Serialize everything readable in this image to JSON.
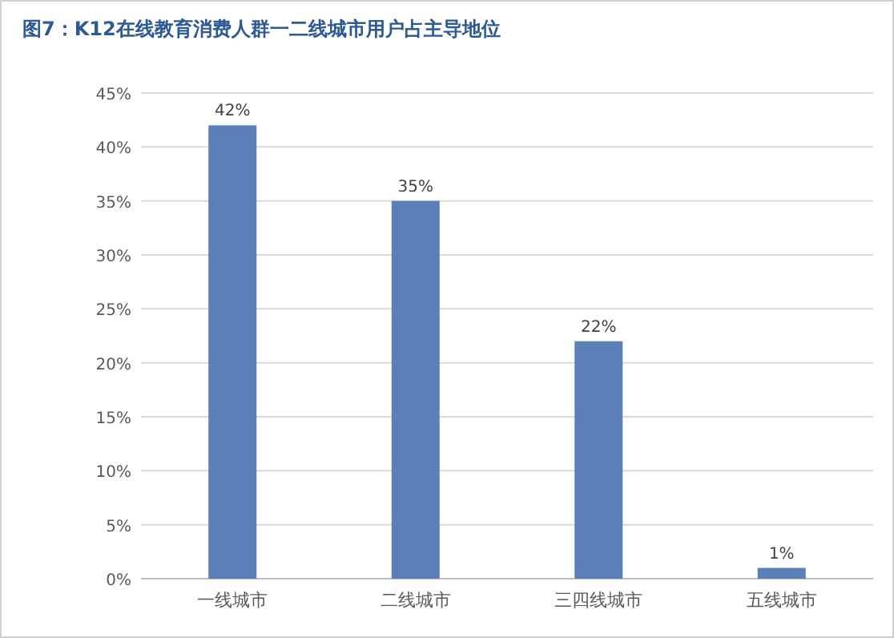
{
  "chart_data": {
    "type": "bar",
    "title": "图7：K12在线教育消费人群一二线城市用户占主导地位",
    "categories": [
      "一线城市",
      "二线城市",
      "三四线城市",
      "五线城市"
    ],
    "values": [
      42,
      35,
      22,
      1
    ],
    "value_labels": [
      "42%",
      "35%",
      "22%",
      "1%"
    ],
    "color": "#5b80b8",
    "ylim": [
      0,
      45
    ],
    "yticks": [
      {
        "value": 0,
        "label": "0%"
      },
      {
        "value": 5,
        "label": "5%"
      },
      {
        "value": 10,
        "label": "10%"
      },
      {
        "value": 15,
        "label": "15%"
      },
      {
        "value": 20,
        "label": "20%"
      },
      {
        "value": 25,
        "label": "25%"
      },
      {
        "value": 30,
        "label": "30%"
      },
      {
        "value": 35,
        "label": "35%"
      },
      {
        "value": 40,
        "label": "40%"
      },
      {
        "value": 45,
        "label": "45%"
      }
    ],
    "grid": "y"
  }
}
